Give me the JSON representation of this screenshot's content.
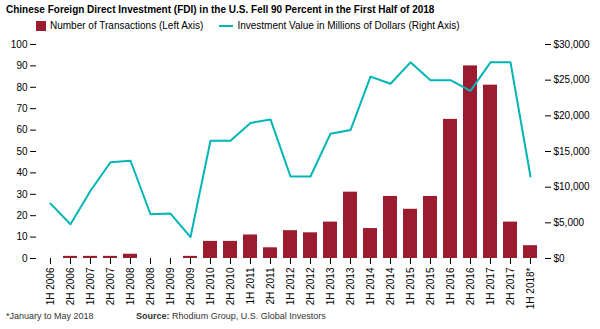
{
  "chart_data": {
    "type": "bar",
    "title": "Chinese Foreign Direct Investment (FDI) in the U.S. Fell 90 Percent in the First Half of 2018",
    "categories": [
      "1H 2006",
      "2H 2006",
      "1H 2007",
      "2H 2007",
      "1H 2008",
      "2H 2008",
      "1H 2009",
      "2H 2009",
      "1H 2010",
      "2H 2010",
      "1H 2011",
      "2H 2011",
      "1H 2012",
      "2H 2012",
      "1H 2013",
      "2H 2013",
      "1H 2014",
      "2H 2014",
      "1H 2015",
      "2H 2015",
      "1H 2016",
      "2H 2016",
      "1H 2017",
      "2H 2017",
      "1H 2018*"
    ],
    "series": [
      {
        "name": "Number of Transactions (Left Axis)",
        "type": "bar",
        "color": "#9b1c2e",
        "values": [
          0,
          1,
          1,
          1,
          2,
          0,
          0,
          1,
          8,
          8,
          11,
          5,
          13,
          12,
          17,
          31,
          14,
          29,
          23,
          29,
          65,
          90,
          81,
          17,
          6
        ]
      },
      {
        "name": "Investment Value in Millions of Dollars (Right Axis)",
        "type": "line",
        "color": "#00b5b5",
        "axis": "y2",
        "values": [
          7700,
          4800,
          9500,
          13500,
          13700,
          6200,
          6300,
          3000,
          16500,
          16500,
          19000,
          19500,
          11500,
          11500,
          17500,
          18000,
          25500,
          24500,
          27500,
          25000,
          25000,
          23500,
          27500,
          27500,
          11500
        ]
      }
    ],
    "ylim": [
      0,
      100
    ],
    "yticks": [
      0,
      10,
      20,
      30,
      40,
      50,
      60,
      70,
      80,
      90,
      100
    ],
    "y2lim": [
      0,
      30000
    ],
    "y2ticks": [
      {
        "value": 0,
        "label": "$0"
      },
      {
        "value": 5000,
        "label": "$5,000"
      },
      {
        "value": 10000,
        "label": "$10,000"
      },
      {
        "value": 15000,
        "label": "$15,000"
      },
      {
        "value": 20000,
        "label": "$20,000"
      },
      {
        "value": 25000,
        "label": "$25,000"
      },
      {
        "value": 30000,
        "label": "$30,000"
      }
    ],
    "legend": "top",
    "grid": false,
    "annotations": [
      "*January to May 2018",
      "Source:",
      "Rhodium Group, U.S. Global Investors"
    ]
  }
}
